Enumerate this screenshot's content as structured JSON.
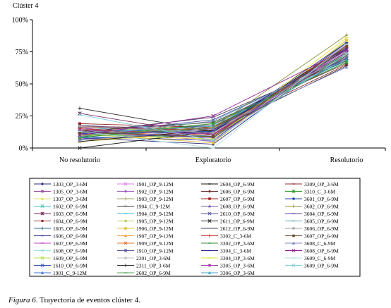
{
  "chart_data": {
    "type": "line",
    "title": "Clúster 4",
    "xlabel": "",
    "ylabel": "",
    "categories": [
      "No resolutorio",
      "Exploratorio",
      "Resolutorio"
    ],
    "ylim": [
      0,
      100
    ],
    "yticks": [
      "0%",
      "25%",
      "50%",
      "75%",
      "100%"
    ],
    "grid": false,
    "legend_position": "bottom",
    "series": [
      {
        "name": "1303_OP_3-6M",
        "color": "#2b2b7a",
        "marker": "diamond",
        "values": [
          8,
          3,
          78
        ]
      },
      {
        "name": "1305_OP_3-6M",
        "color": "#a04aa0",
        "marker": "square",
        "values": [
          12,
          8,
          72
        ]
      },
      {
        "name": "1307_OP_3-6M",
        "color": "#e0e060",
        "marker": "triangle",
        "values": [
          5,
          12,
          80
        ]
      },
      {
        "name": "1602_OP_6-9M",
        "color": "#40c0c0",
        "marker": "x",
        "values": [
          14,
          20,
          68
        ]
      },
      {
        "name": "1603_OP_6-9M",
        "color": "#7a2b5a",
        "marker": "star",
        "values": [
          27,
          10,
          75
        ]
      },
      {
        "name": "1604_OP_6-9M",
        "color": "#8b3030",
        "marker": "circle",
        "values": [
          17,
          15,
          65
        ]
      },
      {
        "name": "1605_OP_6-9M",
        "color": "#2f6f8f",
        "marker": "plus",
        "values": [
          10,
          18,
          70
        ]
      },
      {
        "name": "1606_OP_6-9M",
        "color": "#30309a",
        "marker": "dash",
        "values": [
          9,
          6,
          82
        ]
      },
      {
        "name": "1607_OP_6-9M",
        "color": "#c040c0",
        "marker": "dash",
        "values": [
          13,
          9,
          77
        ]
      },
      {
        "name": "1608_OP_6-9M",
        "color": "#a0e0e0",
        "marker": "x",
        "values": [
          6,
          14,
          71
        ]
      },
      {
        "name": "1609_OP_6-9M",
        "color": "#b0e040",
        "marker": "x",
        "values": [
          11,
          7,
          83
        ]
      },
      {
        "name": "1610_OP_6-9M",
        "color": "#3050c0",
        "marker": "x",
        "values": [
          15,
          11,
          74
        ]
      },
      {
        "name": "1901_C_9-12M",
        "color": "#4070d0",
        "marker": "triangle",
        "values": [
          9,
          16,
          76
        ]
      },
      {
        "name": "1901_OP_9-12M",
        "color": "#e080e0",
        "marker": "x",
        "values": [
          7,
          13,
          79
        ]
      },
      {
        "name": "1902_OP_9-12M",
        "color": "#a060c0",
        "marker": "circle",
        "values": [
          16,
          5,
          81
        ]
      },
      {
        "name": "1903_OP_9-12M",
        "color": "#a0a060",
        "marker": "plus",
        "values": [
          10,
          19,
          67
        ]
      },
      {
        "name": "1904_C_9-12M",
        "color": "#404040",
        "marker": "dash",
        "values": [
          12,
          14,
          73
        ]
      },
      {
        "name": "1904_OP_9-12M",
        "color": "#40c0e0",
        "marker": "dash",
        "values": [
          8,
          10,
          80
        ]
      },
      {
        "name": "1905_OP_9-12M",
        "color": "#b0d050",
        "marker": "circle",
        "values": [
          13,
          17,
          69
        ]
      },
      {
        "name": "1906_OP_9-12M",
        "color": "#e0c040",
        "marker": "square",
        "values": [
          11,
          4,
          84
        ]
      },
      {
        "name": "1907_OP_9-12M",
        "color": "#f0a040",
        "marker": "triangle",
        "values": [
          6,
          12,
          78
        ]
      },
      {
        "name": "1909_OP_9-12M",
        "color": "#e07030",
        "marker": "x",
        "values": [
          14,
          8,
          75
        ]
      },
      {
        "name": "1910_OP_9-12M",
        "color": "#6060a0",
        "marker": "star",
        "values": [
          18,
          11,
          70
        ]
      },
      {
        "name": "2301_OP_3-6M",
        "color": "#c0c0c0",
        "marker": "circle",
        "values": [
          9,
          15,
          76
        ]
      },
      {
        "name": "2311_OP_3-6M",
        "color": "#303030",
        "marker": "plus",
        "values": [
          31,
          13,
          64
        ]
      },
      {
        "name": "2602_OP_6-9M",
        "color": "#50a050",
        "marker": "dash",
        "values": [
          10,
          9,
          72
        ]
      },
      {
        "name": "2604_OP_6-9M",
        "color": "#101010",
        "marker": "dash",
        "values": [
          5,
          14,
          79
        ]
      },
      {
        "name": "2606_OP_6-9M",
        "color": "#6b3030",
        "marker": "diamond",
        "values": [
          13,
          20,
          66
        ]
      },
      {
        "name": "2607_OP_6-9M",
        "color": "#9a2020",
        "marker": "square",
        "values": [
          19,
          16,
          71
        ]
      },
      {
        "name": "2608_OP_6-9M",
        "color": "#7a60b0",
        "marker": "triangle",
        "values": [
          8,
          18,
          74
        ]
      },
      {
        "name": "2610_OP_6-9M",
        "color": "#5050a0",
        "marker": "x",
        "values": [
          11,
          22,
          70
        ]
      },
      {
        "name": "2611_OP_6-9M",
        "color": "#202020",
        "marker": "x",
        "values": [
          0,
          13,
          77
        ]
      },
      {
        "name": "2612_OP_6-9M",
        "color": "#404060",
        "marker": "none",
        "values": [
          12,
          24,
          68
        ]
      },
      {
        "name": "3302_C_3-6M",
        "color": "#d03030",
        "marker": "plus",
        "values": [
          15,
          10,
          80
        ]
      },
      {
        "name": "3302_OP_3-6M",
        "color": "#309030",
        "marker": "dash",
        "values": [
          9,
          15,
          73
        ]
      },
      {
        "name": "3304_C_3-6M",
        "color": "#3030a0",
        "marker": "dash",
        "values": [
          7,
          12,
          82
        ]
      },
      {
        "name": "3304_OP_3-6M",
        "color": "#e0e040",
        "marker": "dash",
        "values": [
          10,
          7,
          86
        ]
      },
      {
        "name": "3305_OP_3-6M",
        "color": "#a040a0",
        "marker": "square",
        "values": [
          14,
          11,
          76
        ]
      },
      {
        "name": "3306_OP_3-6M",
        "color": "#40a0c0",
        "marker": "triangle",
        "values": [
          12,
          17,
          69
        ]
      },
      {
        "name": "3309_OP_3-6M",
        "color": "#903030",
        "marker": "dash",
        "values": [
          16,
          14,
          72
        ]
      },
      {
        "name": "3310_C_3-6M",
        "color": "#30a030",
        "marker": "star",
        "values": [
          8,
          19,
          67
        ]
      },
      {
        "name": "3601_OP_6-9M",
        "color": "#2040a0",
        "marker": "circle",
        "values": [
          11,
          13,
          78
        ]
      },
      {
        "name": "3602_OP_6-9M",
        "color": "#909040",
        "marker": "plus",
        "values": [
          10,
          16,
          88
        ]
      },
      {
        "name": "3604_OP_6-9M",
        "color": "#6040a0",
        "marker": "dash",
        "values": [
          13,
          8,
          75
        ]
      },
      {
        "name": "3605_OP_6-9M",
        "color": "#60a0b0",
        "marker": "dash",
        "values": [
          9,
          21,
          71
        ]
      },
      {
        "name": "3606_OP_6-9M",
        "color": "#a0a0a0",
        "marker": "circle",
        "values": [
          17,
          12,
          74
        ]
      },
      {
        "name": "3607_OP_6-9M",
        "color": "#705030",
        "marker": "square",
        "values": [
          12,
          9,
          79
        ]
      },
      {
        "name": "3608_C_6-9M",
        "color": "#8080c0",
        "marker": "triangle",
        "values": [
          6,
          15,
          63
        ]
      },
      {
        "name": "3608_OP_6-9M",
        "color": "#902090",
        "marker": "x",
        "values": [
          10,
          25,
          77
        ]
      },
      {
        "name": "3609_C_6-9M",
        "color": "#b0e0e0",
        "marker": "dash",
        "values": [
          13,
          0,
          81
        ]
      },
      {
        "name": "3609_OP_6-9M",
        "color": "#80d0e0",
        "marker": "x",
        "values": [
          26,
          6,
          73
        ]
      }
    ]
  },
  "caption": {
    "prefix": "Figura 6",
    "text": ". Trayectoria de eventos clúster 4."
  }
}
